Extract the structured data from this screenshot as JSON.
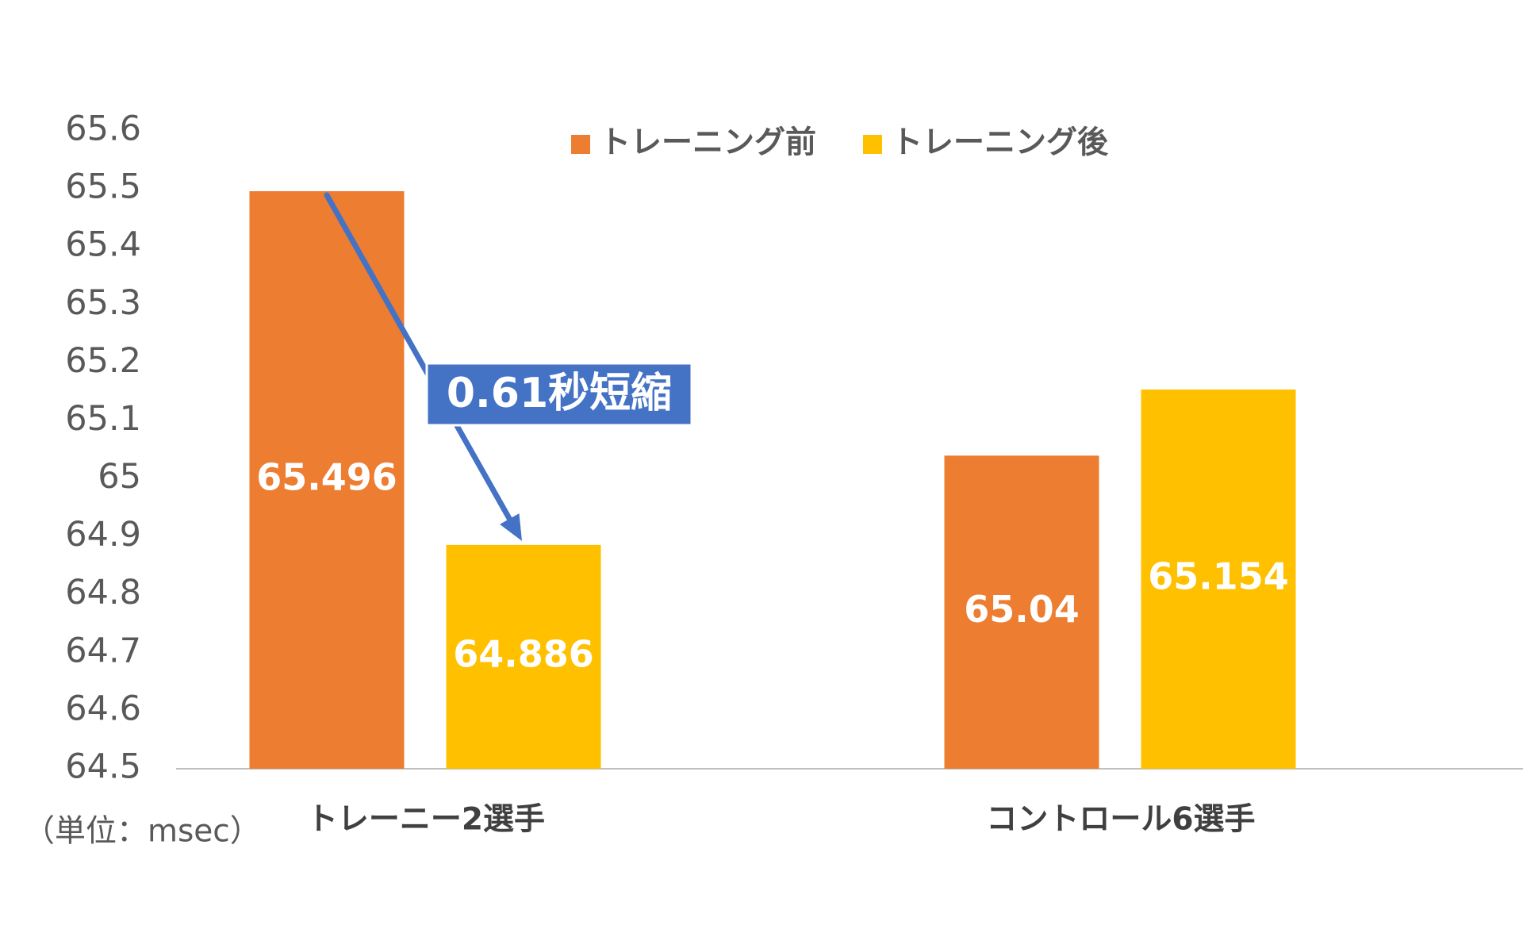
{
  "chart_data": {
    "type": "bar",
    "title": "",
    "xlabel": "",
    "ylabel": "",
    "unit_note": "（単位：msec）",
    "ylim": [
      64.5,
      65.6
    ],
    "yticks": [
      "65.6",
      "65.5",
      "65.4",
      "65.3",
      "65.2",
      "65.1",
      "65",
      "64.9",
      "64.8",
      "64.7",
      "64.6",
      "64.5"
    ],
    "categories": [
      "トレーニー2選手",
      "コントロール6選手"
    ],
    "series": [
      {
        "name": "トレーニング前",
        "values": [
          65.496,
          65.04
        ],
        "labels": [
          "65.496",
          "65.04"
        ],
        "color": "#ED7D31"
      },
      {
        "name": "トレーニング後",
        "values": [
          64.886,
          65.154
        ],
        "labels": [
          "64.886",
          "65.154"
        ],
        "color": "#FFC000"
      }
    ],
    "legend_position": "top",
    "grid": false,
    "annotation": {
      "text": "0.61秒短縮",
      "from": {
        "category": "トレーニー2選手",
        "series": "トレーニング前"
      },
      "to": {
        "category": "トレーニー2選手",
        "series": "トレーニング後"
      },
      "box_color": "#4472C4",
      "arrow_color": "#4472C4"
    }
  }
}
